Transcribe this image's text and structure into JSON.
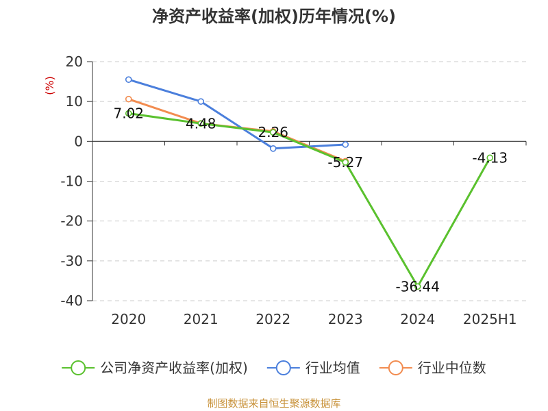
{
  "chart_data": {
    "type": "line",
    "title": "净资产收益率(加权)历年情况(%)",
    "ylabel": "(%)",
    "categories": [
      "2020",
      "2021",
      "2022",
      "2023",
      "2024",
      "2025H1"
    ],
    "ylim": [
      -40,
      20
    ],
    "yticks": [
      20,
      10,
      0,
      -10,
      -20,
      -30,
      -40
    ],
    "grid": true,
    "legend_position": "bottom",
    "series": [
      {
        "name": "公司净资产收益率(加权)",
        "color": "#5ac12e",
        "values": [
          7.02,
          4.48,
          2.26,
          -5.27,
          -36.44,
          -4.13
        ],
        "labels": [
          "7.02",
          "4.48",
          "2.26",
          "-5.27",
          "-36.44",
          "-4.13"
        ]
      },
      {
        "name": "行业均值",
        "color": "#4b7fdc",
        "values": [
          15.5,
          10.0,
          -1.8,
          -0.8,
          null,
          null
        ]
      },
      {
        "name": "行业中位数",
        "color": "#f28c50",
        "values": [
          10.6,
          4.5,
          2.5,
          -5.0,
          null,
          null
        ]
      }
    ]
  },
  "source_note": "制图数据来自恒生聚源数据库"
}
